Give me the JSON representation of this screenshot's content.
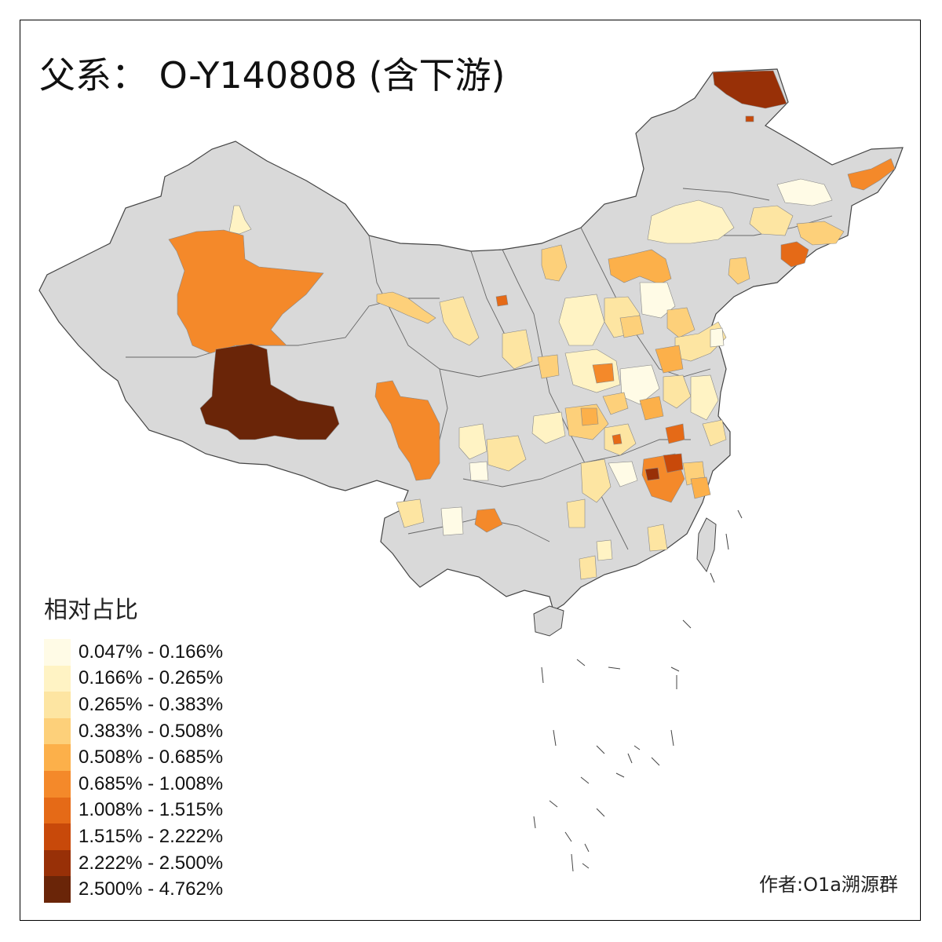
{
  "title": "父系： O-Y140808 (含下游)",
  "legend": {
    "title": "相对占比",
    "items": [
      {
        "label": "0.047% - 0.166%",
        "color": "#fffbe6"
      },
      {
        "label": "0.166% - 0.265%",
        "color": "#fff3c4"
      },
      {
        "label": "0.265% - 0.383%",
        "color": "#fde5a2"
      },
      {
        "label": "0.383% - 0.508%",
        "color": "#fdd07a"
      },
      {
        "label": "0.508% - 0.685%",
        "color": "#fcb04a"
      },
      {
        "label": "0.685% - 1.008%",
        "color": "#f4892a"
      },
      {
        "label": "1.008% - 1.515%",
        "color": "#e56a17"
      },
      {
        "label": "1.515% - 2.222%",
        "color": "#c8490a"
      },
      {
        "label": "2.222% - 2.500%",
        "color": "#983007"
      },
      {
        "label": "2.500% - 4.762%",
        "color": "#6a2508"
      }
    ]
  },
  "credit": "作者:O1a溯源群",
  "map": {
    "land_color": "#d9d9d9",
    "border_color": "#444444"
  }
}
